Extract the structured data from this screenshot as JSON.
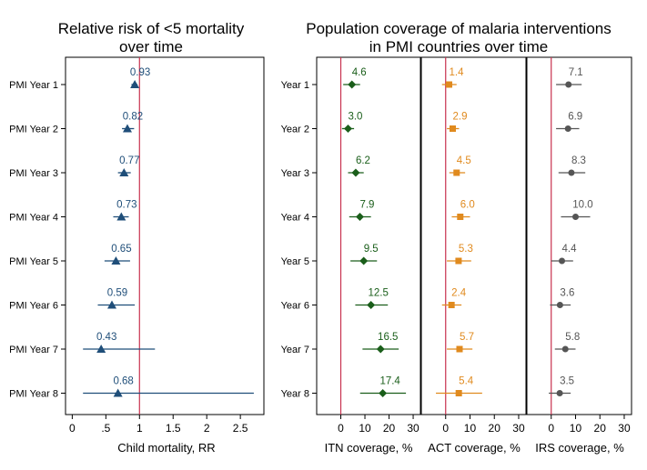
{
  "chart_data": [
    {
      "type": "scatter",
      "title": "Relative risk of <5 mortality over time",
      "title_lines": [
        "Relative risk of <5 mortality",
        "over time"
      ],
      "xlabel": "Child mortality, RR",
      "ylabel": "",
      "categories": [
        "PMI Year 1",
        "PMI Year 2",
        "PMI Year 3",
        "PMI Year 4",
        "PMI Year 5",
        "PMI Year 6",
        "PMI Year 7",
        "PMI Year 8"
      ],
      "values": [
        0.93,
        0.82,
        0.77,
        0.73,
        0.65,
        0.59,
        0.43,
        0.68
      ],
      "value_labels": [
        "0.93",
        "0.82",
        "0.77",
        "0.73",
        "0.65",
        "0.59",
        "0.43",
        "0.68"
      ],
      "ci_low": [
        0.88,
        0.74,
        0.68,
        0.61,
        0.48,
        0.38,
        0.16,
        0.16
      ],
      "ci_high": [
        0.97,
        0.92,
        0.87,
        0.84,
        0.86,
        0.93,
        1.23,
        2.7
      ],
      "reference_line": 1,
      "xlim": [
        -0.1,
        2.85
      ],
      "xticks": [
        "0",
        ".5",
        "1",
        "1.5",
        "2",
        "2.5"
      ],
      "xtick_values": [
        0,
        0.5,
        1,
        1.5,
        2,
        2.5
      ],
      "marker": "triangle",
      "color": "#1f4e79",
      "grid": false
    },
    {
      "type": "scatter",
      "title": "Population coverage of malaria interventions in PMI countries over time",
      "title_lines": [
        "Population coverage of malaria interventions",
        "in PMI countries over time"
      ],
      "categories": [
        "Year 1",
        "Year 2",
        "Year 3",
        "Year 4",
        "Year 5",
        "Year 6",
        "Year 7",
        "Year 8"
      ],
      "reference_line": 0,
      "xlim": [
        -10,
        33
      ],
      "xticks": [
        "0",
        "10",
        "20",
        "30"
      ],
      "xtick_values": [
        0,
        10,
        20,
        30
      ],
      "grid": false,
      "series": [
        {
          "xlabel": "ITN coverage, %",
          "marker": "diamond",
          "color": "#1a5e1a",
          "values": [
            4.6,
            3.0,
            6.2,
            7.9,
            9.5,
            12.5,
            16.5,
            17.4
          ],
          "value_labels": [
            "4.6",
            "3.0",
            "6.2",
            "7.9",
            "9.5",
            "12.5",
            "16.5",
            "17.4"
          ],
          "ci_low": [
            1.0,
            0.5,
            3.0,
            3.5,
            4.0,
            6.0,
            9.0,
            8.0
          ],
          "ci_high": [
            8.0,
            5.5,
            9.5,
            12.5,
            15.0,
            19.5,
            24.0,
            27.0
          ]
        },
        {
          "xlabel": "ACT coverage, %",
          "marker": "square",
          "color": "#e08a1e",
          "values": [
            1.4,
            2.9,
            4.5,
            6.0,
            5.3,
            2.4,
            5.7,
            5.4
          ],
          "value_labels": [
            "1.4",
            "2.9",
            "4.5",
            "6.0",
            "5.3",
            "2.4",
            "5.7",
            "5.4"
          ],
          "ci_low": [
            -1.5,
            0.5,
            1.5,
            2.5,
            0.5,
            -1.5,
            0.5,
            -4.0
          ],
          "ci_high": [
            4.5,
            5.5,
            8.0,
            10.0,
            10.5,
            6.5,
            11.0,
            15.0
          ]
        },
        {
          "xlabel": "IRS coverage, %",
          "marker": "circle",
          "color": "#555555",
          "values": [
            7.1,
            6.9,
            8.3,
            10.0,
            4.4,
            3.6,
            5.8,
            3.5
          ],
          "value_labels": [
            "7.1",
            "6.9",
            "8.3",
            "10.0",
            "4.4",
            "3.6",
            "5.8",
            "3.5"
          ],
          "ci_low": [
            2.0,
            2.0,
            3.0,
            4.0,
            0.0,
            -0.5,
            1.5,
            -1.0
          ],
          "ci_high": [
            12.5,
            11.5,
            14.0,
            16.0,
            9.0,
            8.0,
            10.0,
            8.0
          ]
        }
      ]
    }
  ],
  "colors": {
    "reference_line": "#c8324f",
    "frame": "#000000"
  }
}
